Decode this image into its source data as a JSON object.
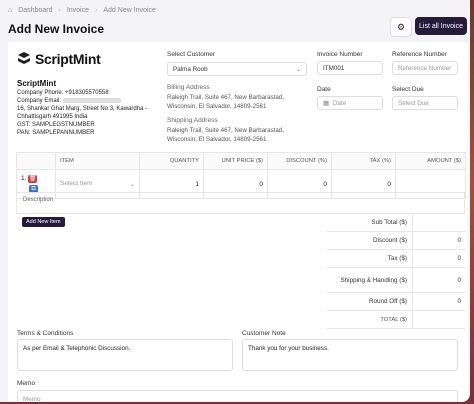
{
  "breadcrumb": {
    "home": "Dashboard",
    "section": "Invoice",
    "current": "Add New Invoice"
  },
  "page_title": "Add New Invoice",
  "toolbar": {
    "list_label": "List all Invoice",
    "settings_icon": "gear-icon"
  },
  "company": {
    "logo_text": "ScriptMint",
    "name": "ScriptMint",
    "phone": "Company Phone: +918305570558",
    "email_label": "Company Email:",
    "address_line1": "16, Shankar Ghat Marg, Street No 3, Kawardha -",
    "address_line2": "Chhattisgarh 491995 India",
    "gst": "GST: SAMPLEGSTNUMBER",
    "pan": "PAN: SAMPLEPANNUMBER"
  },
  "customer": {
    "label": "Select Customer",
    "value": "Palma Roob",
    "billing_label": "Billing Address",
    "billing_line1": "Raleigh Trail, Suite 467, New Barbarastad,",
    "billing_line2": "Wisconsin, El Salvador, 14809-2561",
    "shipping_label": "Shipping Address",
    "shipping_line1": "Raleigh Trail, Suite 467, New Barbarastad,",
    "shipping_line2": "Wisconsin, El Salvador, 14809-2561"
  },
  "invoice": {
    "number_label": "Invoice Number",
    "number_value": "ITM001",
    "reference_label": "Reference Number",
    "reference_placeholder": "Reference Number",
    "date_label": "Date",
    "date_placeholder": "Date",
    "due_label": "Select Due",
    "due_placeholder": "Select Due"
  },
  "items_table": {
    "headers": [
      "ITEM",
      "QUANTITY",
      "UNIT PRICE ($)",
      "DISCOUNT (%)",
      "TAX (%)",
      "AMOUNT ($)"
    ],
    "row": {
      "index": "1.",
      "item_placeholder": "Select Item",
      "quantity": "1",
      "unit_price": "0",
      "discount": "0",
      "tax": "0"
    },
    "description_placeholder": "Description",
    "add_item_label": "Add New Item"
  },
  "totals": {
    "sub_total": "Sub Total ($)",
    "discount": "Discount ($)",
    "tax": "Tax ($)",
    "shipping": "Shipping & Handling ($)",
    "round_off": "Round Off ($)",
    "total": "TOTAL ($)",
    "discount_value": "0",
    "tax_value": "0",
    "shipping_value": "0",
    "round_off_value": "0"
  },
  "terms": {
    "label": "Terms & Conditions",
    "value": "As per Email & Telephonic Discussion."
  },
  "customer_note": {
    "label": "Customer Note",
    "value": "Thank you for your business."
  },
  "memo": {
    "label": "Memo",
    "placeholder": "Memo"
  }
}
